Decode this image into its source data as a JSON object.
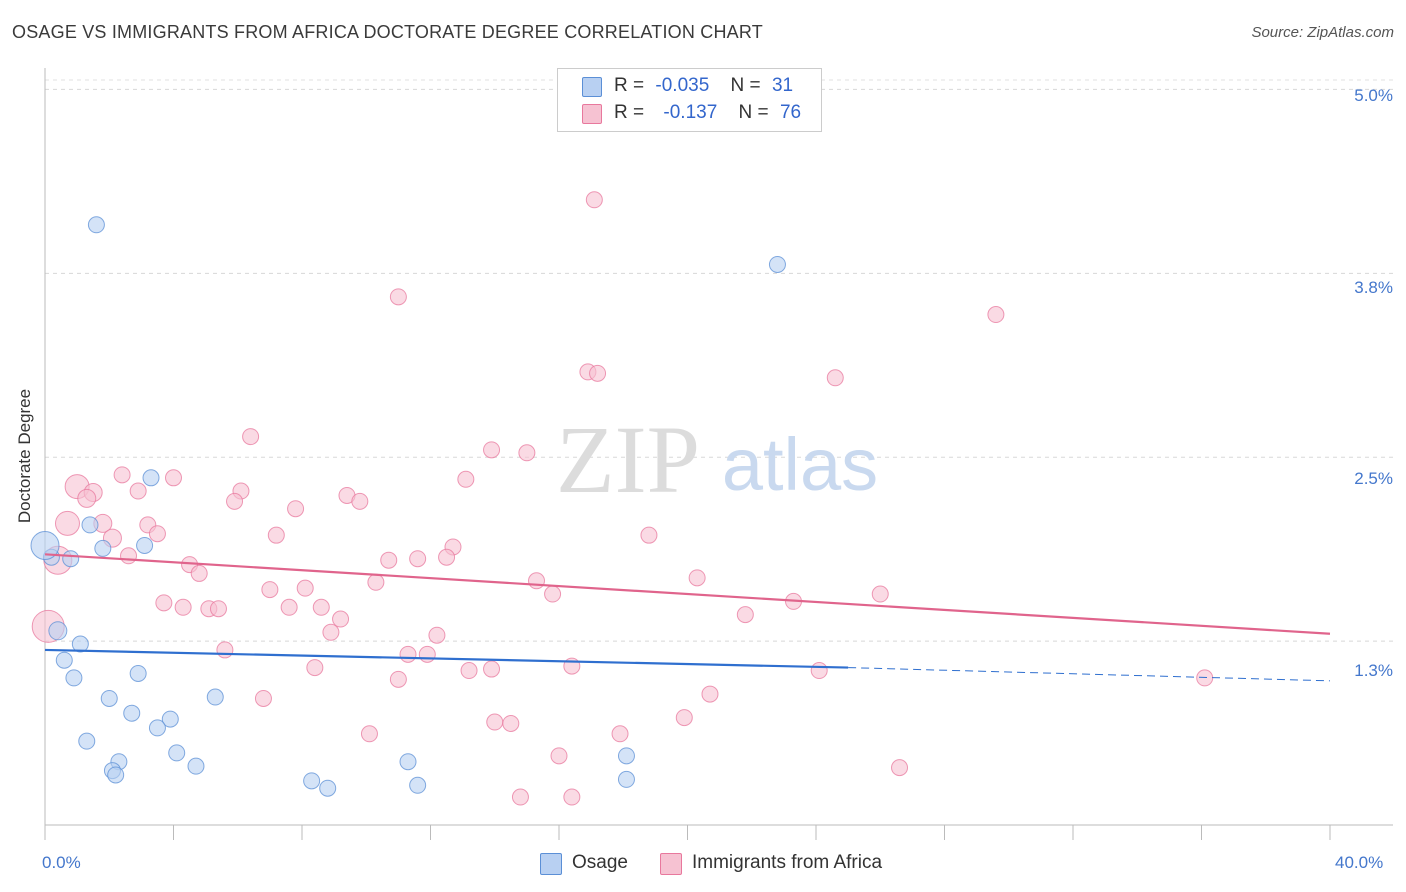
{
  "title": "OSAGE VS IMMIGRANTS FROM AFRICA DOCTORATE DEGREE CORRELATION CHART",
  "source": "Source: ZipAtlas.com",
  "watermark": {
    "zip": "ZIP",
    "atlas": "atlas"
  },
  "legend": {
    "osage": {
      "r_label": "R =",
      "r_value": "-0.035",
      "n_label": "N =",
      "n_value": "31"
    },
    "africa": {
      "r_label": "R =",
      "r_value": "-0.137",
      "n_label": "N =",
      "n_value": "76"
    }
  },
  "chart_data": {
    "type": "scatter",
    "title": "OSAGE VS IMMIGRANTS FROM AFRICA DOCTORATE DEGREE CORRELATION CHART",
    "xlabel": "",
    "ylabel": "Doctorate Degree",
    "xlim": [
      0,
      40
    ],
    "ylim": [
      0,
      5.2
    ],
    "x_tick_labels": [
      "0.0%",
      "40.0%"
    ],
    "y_tick_labels": [
      "5.0%",
      "3.8%",
      "2.5%",
      "1.3%"
    ],
    "y_tick_values": [
      5.0,
      3.75,
      2.5,
      1.25
    ],
    "colors": {
      "osage": "#5b8fd6",
      "africa": "#e8789d",
      "osage_fill": "#b8d0f2",
      "africa_fill": "#f6c2d2"
    },
    "series": [
      {
        "name": "Osage",
        "r": -0.035,
        "n": 31,
        "trend": {
          "x0": 0,
          "y0": 1.19,
          "x1": 25,
          "y1": 1.07,
          "dash_x1": 40,
          "dash_y1": 0.98
        },
        "points": [
          {
            "x": 1.6,
            "y": 4.08,
            "s": 8
          },
          {
            "x": 22.8,
            "y": 3.81,
            "s": 8
          },
          {
            "x": 3.3,
            "y": 2.36,
            "s": 8
          },
          {
            "x": 1.4,
            "y": 2.04,
            "s": 8
          },
          {
            "x": 3.1,
            "y": 1.9,
            "s": 8
          },
          {
            "x": 1.8,
            "y": 1.88,
            "s": 8
          },
          {
            "x": 0.2,
            "y": 1.82,
            "s": 8
          },
          {
            "x": 0.8,
            "y": 1.81,
            "s": 8
          },
          {
            "x": 0.0,
            "y": 1.9,
            "s": 14
          },
          {
            "x": 0.4,
            "y": 1.32,
            "s": 9
          },
          {
            "x": 1.1,
            "y": 1.23,
            "s": 8
          },
          {
            "x": 0.6,
            "y": 1.12,
            "s": 8
          },
          {
            "x": 0.9,
            "y": 1.0,
            "s": 8
          },
          {
            "x": 2.9,
            "y": 1.03,
            "s": 8
          },
          {
            "x": 2.0,
            "y": 0.86,
            "s": 8
          },
          {
            "x": 5.3,
            "y": 0.87,
            "s": 8
          },
          {
            "x": 2.7,
            "y": 0.76,
            "s": 8
          },
          {
            "x": 3.9,
            "y": 0.72,
            "s": 8
          },
          {
            "x": 3.5,
            "y": 0.66,
            "s": 8
          },
          {
            "x": 1.3,
            "y": 0.57,
            "s": 8
          },
          {
            "x": 4.1,
            "y": 0.49,
            "s": 8
          },
          {
            "x": 2.3,
            "y": 0.43,
            "s": 8
          },
          {
            "x": 2.1,
            "y": 0.37,
            "s": 8
          },
          {
            "x": 2.2,
            "y": 0.34,
            "s": 8
          },
          {
            "x": 4.7,
            "y": 0.4,
            "s": 8
          },
          {
            "x": 11.3,
            "y": 0.43,
            "s": 8
          },
          {
            "x": 8.3,
            "y": 0.3,
            "s": 8
          },
          {
            "x": 8.8,
            "y": 0.25,
            "s": 8
          },
          {
            "x": 11.6,
            "y": 0.27,
            "s": 8
          },
          {
            "x": 18.1,
            "y": 0.31,
            "s": 8
          },
          {
            "x": 18.1,
            "y": 0.47,
            "s": 8
          }
        ]
      },
      {
        "name": "Immigrants from Africa",
        "r": -0.137,
        "n": 76,
        "trend": {
          "x0": 0,
          "y0": 1.84,
          "x1": 40,
          "y1": 1.3
        },
        "points": [
          {
            "x": 17.1,
            "y": 4.25,
            "s": 8
          },
          {
            "x": 11.0,
            "y": 3.59,
            "s": 8
          },
          {
            "x": 29.6,
            "y": 3.47,
            "s": 8
          },
          {
            "x": 16.9,
            "y": 3.08,
            "s": 8
          },
          {
            "x": 17.2,
            "y": 3.07,
            "s": 8
          },
          {
            "x": 24.6,
            "y": 3.04,
            "s": 8
          },
          {
            "x": 6.4,
            "y": 2.64,
            "s": 8
          },
          {
            "x": 13.9,
            "y": 2.55,
            "s": 8
          },
          {
            "x": 15.0,
            "y": 2.53,
            "s": 8
          },
          {
            "x": 2.4,
            "y": 2.38,
            "s": 8
          },
          {
            "x": 4.0,
            "y": 2.36,
            "s": 8
          },
          {
            "x": 13.1,
            "y": 2.35,
            "s": 8
          },
          {
            "x": 1.0,
            "y": 2.3,
            "s": 12
          },
          {
            "x": 1.5,
            "y": 2.26,
            "s": 9
          },
          {
            "x": 2.9,
            "y": 2.27,
            "s": 8
          },
          {
            "x": 6.1,
            "y": 2.27,
            "s": 8
          },
          {
            "x": 9.4,
            "y": 2.24,
            "s": 8
          },
          {
            "x": 9.8,
            "y": 2.2,
            "s": 8
          },
          {
            "x": 5.9,
            "y": 2.2,
            "s": 8
          },
          {
            "x": 7.8,
            "y": 2.15,
            "s": 8
          },
          {
            "x": 1.3,
            "y": 2.22,
            "s": 9
          },
          {
            "x": 0.7,
            "y": 2.05,
            "s": 12
          },
          {
            "x": 1.8,
            "y": 2.05,
            "s": 9
          },
          {
            "x": 3.2,
            "y": 2.04,
            "s": 8
          },
          {
            "x": 3.5,
            "y": 1.98,
            "s": 8
          },
          {
            "x": 2.1,
            "y": 1.95,
            "s": 9
          },
          {
            "x": 7.2,
            "y": 1.97,
            "s": 8
          },
          {
            "x": 18.8,
            "y": 1.97,
            "s": 8
          },
          {
            "x": 12.7,
            "y": 1.89,
            "s": 8
          },
          {
            "x": 2.6,
            "y": 1.83,
            "s": 8
          },
          {
            "x": 0.4,
            "y": 1.8,
            "s": 14
          },
          {
            "x": 10.7,
            "y": 1.8,
            "s": 8
          },
          {
            "x": 11.6,
            "y": 1.81,
            "s": 8
          },
          {
            "x": 12.5,
            "y": 1.82,
            "s": 8
          },
          {
            "x": 4.5,
            "y": 1.77,
            "s": 8
          },
          {
            "x": 4.8,
            "y": 1.71,
            "s": 8
          },
          {
            "x": 20.3,
            "y": 1.68,
            "s": 8
          },
          {
            "x": 15.3,
            "y": 1.66,
            "s": 8
          },
          {
            "x": 10.3,
            "y": 1.65,
            "s": 8
          },
          {
            "x": 7.0,
            "y": 1.6,
            "s": 8
          },
          {
            "x": 8.1,
            "y": 1.61,
            "s": 8
          },
          {
            "x": 15.8,
            "y": 1.57,
            "s": 8
          },
          {
            "x": 26.0,
            "y": 1.57,
            "s": 8
          },
          {
            "x": 3.7,
            "y": 1.51,
            "s": 8
          },
          {
            "x": 4.3,
            "y": 1.48,
            "s": 8
          },
          {
            "x": 5.1,
            "y": 1.47,
            "s": 8
          },
          {
            "x": 5.4,
            "y": 1.47,
            "s": 8
          },
          {
            "x": 7.6,
            "y": 1.48,
            "s": 8
          },
          {
            "x": 8.6,
            "y": 1.48,
            "s": 8
          },
          {
            "x": 23.3,
            "y": 1.52,
            "s": 8
          },
          {
            "x": 9.2,
            "y": 1.4,
            "s": 8
          },
          {
            "x": 21.8,
            "y": 1.43,
            "s": 8
          },
          {
            "x": 0.1,
            "y": 1.35,
            "s": 16
          },
          {
            "x": 8.9,
            "y": 1.31,
            "s": 8
          },
          {
            "x": 12.2,
            "y": 1.29,
            "s": 8
          },
          {
            "x": 5.6,
            "y": 1.19,
            "s": 8
          },
          {
            "x": 11.3,
            "y": 1.16,
            "s": 8
          },
          {
            "x": 11.9,
            "y": 1.16,
            "s": 8
          },
          {
            "x": 8.4,
            "y": 1.07,
            "s": 8
          },
          {
            "x": 13.2,
            "y": 1.05,
            "s": 8
          },
          {
            "x": 13.9,
            "y": 1.06,
            "s": 8
          },
          {
            "x": 16.4,
            "y": 1.08,
            "s": 8
          },
          {
            "x": 11.0,
            "y": 0.99,
            "s": 8
          },
          {
            "x": 24.1,
            "y": 1.05,
            "s": 8
          },
          {
            "x": 36.1,
            "y": 1.0,
            "s": 8
          },
          {
            "x": 6.8,
            "y": 0.86,
            "s": 8
          },
          {
            "x": 20.7,
            "y": 0.89,
            "s": 8
          },
          {
            "x": 19.9,
            "y": 0.73,
            "s": 8
          },
          {
            "x": 14.0,
            "y": 0.7,
            "s": 8
          },
          {
            "x": 14.5,
            "y": 0.69,
            "s": 8
          },
          {
            "x": 10.1,
            "y": 0.62,
            "s": 8
          },
          {
            "x": 17.9,
            "y": 0.62,
            "s": 8
          },
          {
            "x": 16.0,
            "y": 0.47,
            "s": 8
          },
          {
            "x": 26.6,
            "y": 0.39,
            "s": 8
          },
          {
            "x": 14.8,
            "y": 0.19,
            "s": 8
          },
          {
            "x": 16.4,
            "y": 0.19,
            "s": 8
          }
        ]
      }
    ]
  }
}
